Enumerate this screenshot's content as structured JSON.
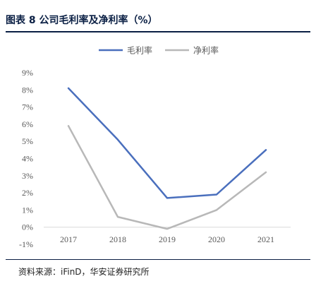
{
  "header": {
    "title": "图表 8  公司毛利率及净利率（%）"
  },
  "footer": {
    "source": "资料来源：iFinD，华安证券研究所"
  },
  "colors": {
    "gross": "#4a6fbd",
    "net": "#b8b8b8",
    "axis": "#d9d9d9",
    "tick_text": "#595959",
    "rule": "#0a1f44"
  },
  "chart_data": {
    "type": "line",
    "categories": [
      "2017",
      "2018",
      "2019",
      "2020",
      "2021"
    ],
    "series": [
      {
        "name": "毛利率",
        "values": [
          8.1,
          5.1,
          1.7,
          1.9,
          4.5
        ],
        "color": "#4a6fbd"
      },
      {
        "name": "净利率",
        "values": [
          5.9,
          0.6,
          -0.1,
          1.0,
          3.2
        ],
        "color": "#b8b8b8"
      }
    ],
    "ylim": [
      -1,
      9
    ],
    "yticks": [
      -1,
      0,
      1,
      2,
      3,
      4,
      5,
      6,
      7,
      8,
      9
    ],
    "ytick_labels": [
      "-1%",
      "0%",
      "1%",
      "2%",
      "3%",
      "4%",
      "5%",
      "6%",
      "7%",
      "8%",
      "9%"
    ],
    "grid": false,
    "legend_position": "top-center"
  }
}
